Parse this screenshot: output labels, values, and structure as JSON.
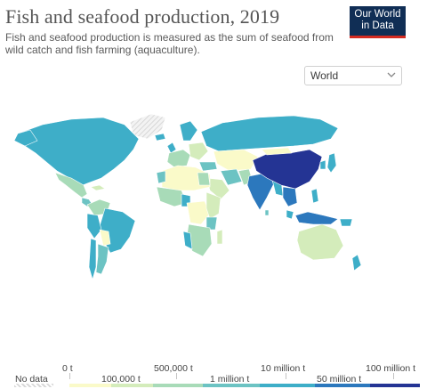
{
  "header": {
    "title": "Fish and seafood production, 2019",
    "subtitle": "Fish and seafood production is measured as the sum of seafood from wild catch and fish farming (aquaculture).",
    "logo_line1": "Our World",
    "logo_line2": "in Data"
  },
  "controls": {
    "region_select": "World"
  },
  "colors": {
    "no_data": "#e0e0e0",
    "ocean": "#ffffff",
    "scale": [
      "#fafac9",
      "#d4ecbb",
      "#a8dbb8",
      "#6cc3c3",
      "#3eaec8",
      "#2c78bd",
      "#243494"
    ]
  },
  "legend": {
    "no_data_label": "No data",
    "top_ticks": [
      "0 t",
      "500,000 t",
      "10 million t",
      "100 million t"
    ],
    "bottom_ticks": [
      "100,000 t",
      "1 million t",
      "50 million t"
    ]
  }
}
